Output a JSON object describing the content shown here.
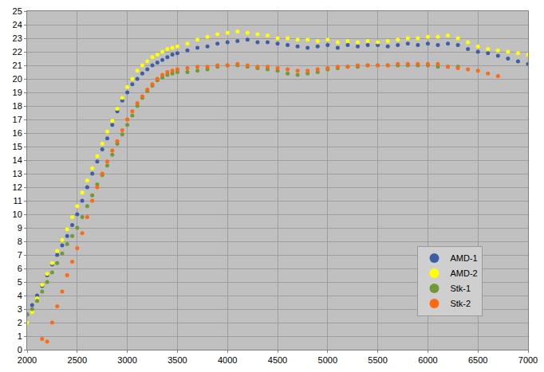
{
  "chart_data": {
    "type": "scatter",
    "marker": "circle",
    "grid": true,
    "legend": "lower right",
    "xlim": [
      2000,
      7000
    ],
    "xticks": [
      2000,
      2500,
      3000,
      3500,
      4000,
      4500,
      5000,
      5500,
      6000,
      6500,
      7000
    ],
    "ylim": [
      0,
      25
    ],
    "yticks": [
      0,
      1,
      2,
      3,
      4,
      5,
      6,
      7,
      8,
      9,
      10,
      11,
      12,
      13,
      14,
      15,
      16,
      17,
      18,
      19,
      20,
      21,
      22,
      23,
      24,
      25
    ],
    "series": [
      {
        "name": "AMD-1",
        "color": "#3b5ea6",
        "x": [
          2000,
          2050,
          2100,
          2150,
          2200,
          2250,
          2300,
          2350,
          2400,
          2450,
          2500,
          2550,
          2600,
          2650,
          2700,
          2750,
          2800,
          2850,
          2900,
          2950,
          3000,
          3050,
          3100,
          3150,
          3200,
          3250,
          3300,
          3350,
          3400,
          3450,
          3500,
          3600,
          3700,
          3800,
          3900,
          4000,
          4100,
          4200,
          4300,
          4400,
          4500,
          4600,
          4700,
          4800,
          4900,
          5000,
          5100,
          5200,
          5300,
          5400,
          5500,
          5600,
          5700,
          5800,
          5900,
          6000,
          6100,
          6200,
          6300,
          6400,
          6500,
          6600,
          6700,
          6800,
          6900,
          7000
        ],
        "values": [
          2.6,
          3.3,
          4.0,
          4.7,
          5.5,
          6.3,
          7.0,
          7.7,
          8.4,
          9.2,
          10.0,
          11.0,
          12.0,
          13.0,
          13.9,
          14.8,
          15.6,
          16.6,
          17.6,
          18.4,
          19.0,
          19.6,
          20.0,
          20.4,
          20.7,
          21.0,
          21.2,
          21.4,
          21.6,
          21.8,
          21.9,
          22.1,
          22.3,
          22.4,
          22.6,
          22.7,
          22.8,
          22.9,
          22.7,
          22.7,
          22.6,
          22.5,
          22.4,
          22.3,
          22.4,
          22.5,
          22.3,
          22.5,
          22.4,
          22.5,
          22.5,
          22.4,
          22.5,
          22.6,
          22.5,
          22.6,
          22.5,
          22.6,
          22.5,
          22.2,
          22.0,
          21.9,
          21.7,
          21.5,
          21.3,
          21.1
        ]
      },
      {
        "name": "AMD-2",
        "color": "#ffff00",
        "x": [
          2000,
          2050,
          2100,
          2150,
          2200,
          2250,
          2300,
          2350,
          2400,
          2450,
          2500,
          2550,
          2600,
          2650,
          2700,
          2750,
          2800,
          2850,
          2900,
          2950,
          3000,
          3050,
          3100,
          3150,
          3200,
          3250,
          3300,
          3350,
          3400,
          3450,
          3500,
          3600,
          3700,
          3800,
          3900,
          4000,
          4100,
          4200,
          4300,
          4400,
          4500,
          4600,
          4700,
          4800,
          4900,
          5000,
          5100,
          5200,
          5300,
          5400,
          5500,
          5600,
          5700,
          5800,
          5900,
          6000,
          6100,
          6200,
          6300,
          6400,
          6500,
          6600,
          6700,
          6800,
          6900,
          7000
        ],
        "values": [
          2.0,
          2.8,
          3.8,
          4.8,
          5.6,
          6.4,
          7.3,
          8.1,
          8.9,
          9.8,
          10.6,
          11.6,
          12.5,
          13.4,
          14.3,
          15.2,
          16.1,
          16.9,
          17.8,
          18.6,
          19.4,
          20.0,
          20.6,
          21.0,
          21.3,
          21.6,
          21.8,
          22.0,
          22.2,
          22.3,
          22.4,
          22.6,
          22.9,
          23.1,
          23.3,
          23.4,
          23.5,
          23.4,
          23.3,
          23.2,
          23.0,
          23.0,
          22.9,
          22.9,
          22.8,
          22.9,
          22.7,
          22.8,
          22.7,
          22.8,
          22.7,
          22.8,
          22.9,
          23.0,
          23.0,
          23.1,
          23.1,
          23.2,
          23.0,
          22.7,
          22.4,
          22.2,
          22.1,
          22.0,
          21.9,
          21.8
        ]
      },
      {
        "name": "Stk-1",
        "color": "#6f9a36",
        "x": [
          2000,
          2050,
          2100,
          2150,
          2200,
          2250,
          2300,
          2350,
          2400,
          2450,
          2500,
          2550,
          2600,
          2650,
          2700,
          2750,
          2800,
          2850,
          2900,
          2950,
          3000,
          3050,
          3100,
          3150,
          3200,
          3250,
          3300,
          3350,
          3400,
          3450,
          3500,
          3600,
          3700,
          3800,
          3900,
          4000,
          4100,
          4200,
          4300,
          4400,
          4500,
          4600,
          4700,
          4800,
          4900,
          5000,
          5100,
          5200,
          5300,
          5400,
          5500,
          5600,
          5700,
          5800,
          5900,
          6000,
          6100,
          6200,
          6300
        ],
        "values": [
          2.6,
          3.0,
          3.6,
          4.3,
          5.0,
          5.7,
          6.4,
          7.1,
          7.8,
          8.4,
          9.0,
          9.8,
          10.6,
          11.4,
          12.2,
          12.9,
          13.6,
          14.4,
          15.2,
          15.9,
          16.6,
          17.3,
          18.0,
          18.6,
          19.1,
          19.5,
          19.9,
          20.1,
          20.3,
          20.4,
          20.5,
          20.5,
          20.6,
          20.7,
          20.9,
          21.0,
          21.0,
          20.9,
          20.8,
          20.7,
          20.6,
          20.4,
          20.3,
          20.4,
          20.5,
          20.7,
          20.8,
          20.9,
          20.9,
          21.0,
          21.0,
          21.0,
          21.0,
          21.0,
          21.0,
          21.0,
          20.9,
          20.9,
          20.9
        ]
      },
      {
        "name": "Stk-2",
        "color": "#ff6a10",
        "x": [
          2150,
          2200,
          2250,
          2300,
          2350,
          2400,
          2450,
          2500,
          2550,
          2600,
          2650,
          2700,
          2750,
          2800,
          2850,
          2900,
          2950,
          3000,
          3050,
          3100,
          3150,
          3200,
          3250,
          3300,
          3350,
          3400,
          3450,
          3500,
          3600,
          3700,
          3800,
          3900,
          4000,
          4100,
          4200,
          4300,
          4400,
          4500,
          4600,
          4700,
          4800,
          4900,
          5000,
          5100,
          5200,
          5300,
          5400,
          5500,
          5600,
          5700,
          5800,
          5900,
          6000,
          6100,
          6200,
          6300,
          6400,
          6500,
          6600,
          6700
        ],
        "values": [
          0.8,
          0.6,
          2.0,
          3.2,
          4.3,
          5.5,
          6.5,
          7.5,
          8.6,
          9.8,
          11.0,
          12.0,
          13.0,
          13.9,
          14.7,
          15.4,
          16.2,
          17.0,
          17.6,
          18.2,
          18.7,
          19.2,
          19.6,
          20.0,
          20.3,
          20.5,
          20.6,
          20.7,
          20.8,
          20.9,
          20.9,
          21.0,
          21.0,
          21.1,
          21.0,
          20.9,
          20.9,
          20.8,
          20.7,
          20.6,
          20.6,
          20.7,
          20.8,
          20.9,
          20.9,
          21.0,
          21.0,
          21.0,
          21.0,
          21.1,
          21.1,
          21.1,
          21.1,
          21.1,
          20.9,
          20.8,
          20.7,
          20.6,
          20.4,
          20.2
        ]
      }
    ]
  }
}
